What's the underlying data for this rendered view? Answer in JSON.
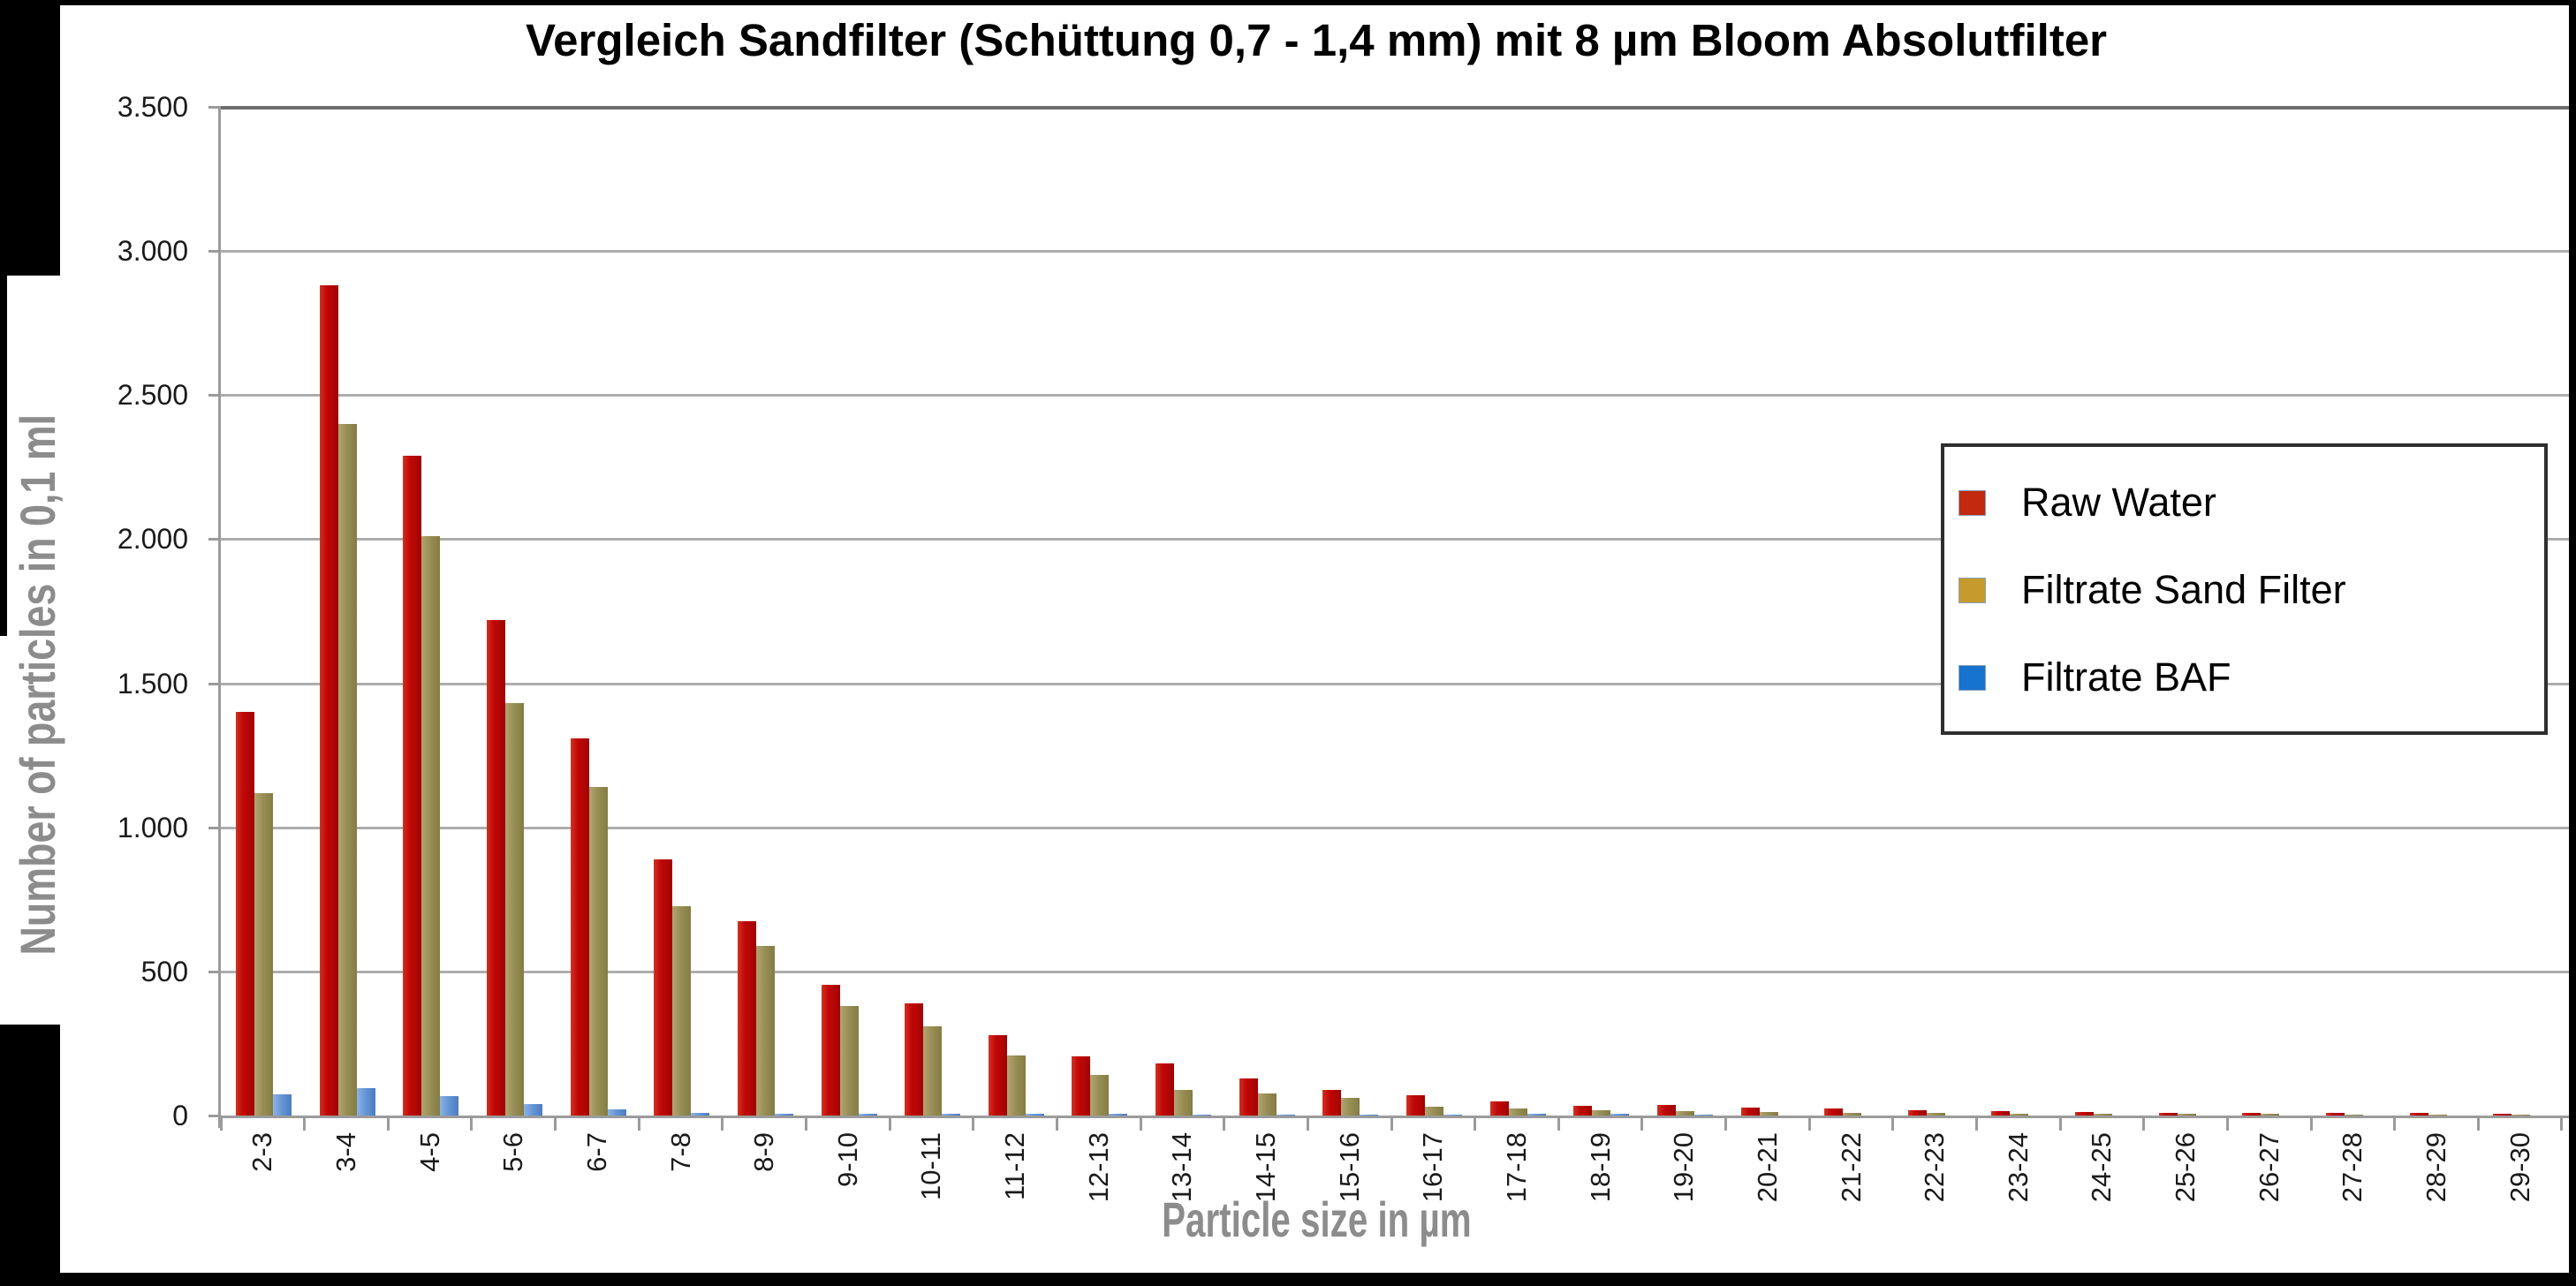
{
  "title": "Vergleich Sandfilter (Schüttung 0,7 - 1,4 mm) mit 8 µm Bloom Absolutfilter",
  "y_axis": {
    "title": "Number of particles in 0,1 ml",
    "tick_labels": [
      "3.500",
      "3.000",
      "2.500",
      "2.000",
      "1.500",
      "1.000",
      "500",
      "0"
    ]
  },
  "x_axis": {
    "title": "Particle size in µm"
  },
  "legend": {
    "items": [
      {
        "label": "Raw Water",
        "swatch_color": "#c2290e"
      },
      {
        "label": "Filtrate Sand Filter",
        "swatch_color": "#c79b2b"
      },
      {
        "label": "Filtrate BAF",
        "swatch_color": "#1873ce"
      }
    ]
  },
  "chart_data": {
    "type": "bar",
    "title": "Vergleich Sandfilter (Schüttung 0,7 - 1,4 mm) mit 8 µm Bloom Absolutfilter",
    "xlabel": "Particle size in µm",
    "ylabel": "Number of particles in 0,1 ml",
    "ylim": [
      0,
      3500
    ],
    "ytick_step": 500,
    "ytick_format": "german-thousands-dot",
    "grid": true,
    "legend_position": "overlay-right",
    "categories": [
      "2-3",
      "3-4",
      "4-5",
      "5-6",
      "6-7",
      "7-8",
      "8-9",
      "9-10",
      "10-11",
      "11-12",
      "12-13",
      "13-14",
      "14-15",
      "15-16",
      "16-17",
      "17-18",
      "18-19",
      "19-20",
      "20-21",
      "21-22",
      "22-23",
      "23-24",
      "24-25",
      "25-26",
      "26-27",
      "27-28",
      "28-29",
      "29-30"
    ],
    "series": [
      {
        "name": "Raw Water",
        "color": "#c00707",
        "values": [
          1400,
          2880,
          2290,
          1720,
          1310,
          890,
          675,
          455,
          390,
          280,
          205,
          180,
          130,
          90,
          70,
          50,
          35,
          38,
          28,
          25,
          18,
          16,
          12,
          10,
          9,
          8,
          8,
          7
        ]
      },
      {
        "name": "Filtrate Sand Filter",
        "color": "#988f56",
        "values": [
          1120,
          2400,
          2010,
          1430,
          1140,
          725,
          590,
          380,
          310,
          210,
          140,
          90,
          76,
          60,
          30,
          25,
          20,
          15,
          12,
          10,
          8,
          7,
          6,
          5,
          5,
          4,
          4,
          3
        ]
      },
      {
        "name": "Filtrate BAF",
        "color": "#6697d8",
        "values": [
          73,
          95,
          67,
          39,
          21,
          10,
          6,
          6,
          6,
          5,
          5,
          4,
          2,
          2,
          2,
          6,
          5,
          2,
          1,
          1,
          1,
          1,
          0,
          0,
          0,
          0,
          0,
          0
        ]
      }
    ]
  }
}
